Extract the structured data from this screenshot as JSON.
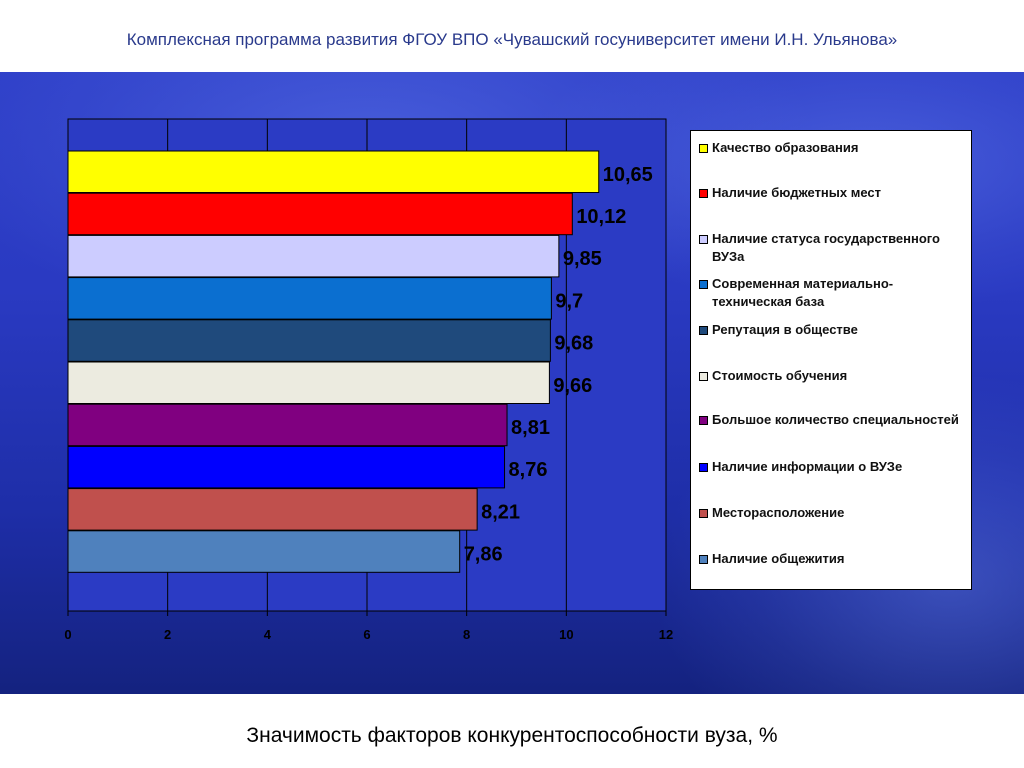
{
  "header": {
    "title": "Комплексная программа развития ФГОУ ВПО «Чувашский госуниверситет имени И.Н. Ульянова»"
  },
  "footer": {
    "subtitle": "Значимость факторов конкурентоспособности вуза, %"
  },
  "chart_data": {
    "type": "bar",
    "orientation": "horizontal",
    "categories": [
      "Качество образования",
      "Наличие бюджетных мест",
      "Наличие статуса государственного ВУЗа",
      "Современная материально-техническая база",
      "Репутация в обществе",
      "Стоимость обучения",
      "Большое количество специальностей",
      "Наличие информации о ВУЗе",
      "Месторасположение",
      "Наличие общежития"
    ],
    "values": [
      10.65,
      10.12,
      9.85,
      9.7,
      9.68,
      9.66,
      8.81,
      8.76,
      8.21,
      7.86
    ],
    "data_labels": [
      "10,65",
      "10,12",
      "9,85",
      "9,7",
      "9,68",
      "9,66",
      "8,81",
      "8,76",
      "8,21",
      "7,86"
    ],
    "colors": [
      "#ffff00",
      "#ff0000",
      "#ccccff",
      "#0b6fd0",
      "#1f4a7c",
      "#ecebe0",
      "#800080",
      "#0000ff",
      "#c0504d",
      "#4f81bd"
    ],
    "xlim": [
      0,
      12
    ],
    "xticks": [
      "0",
      "2",
      "4",
      "6",
      "8",
      "10",
      "12"
    ],
    "grid": true,
    "legend_position": "right"
  }
}
